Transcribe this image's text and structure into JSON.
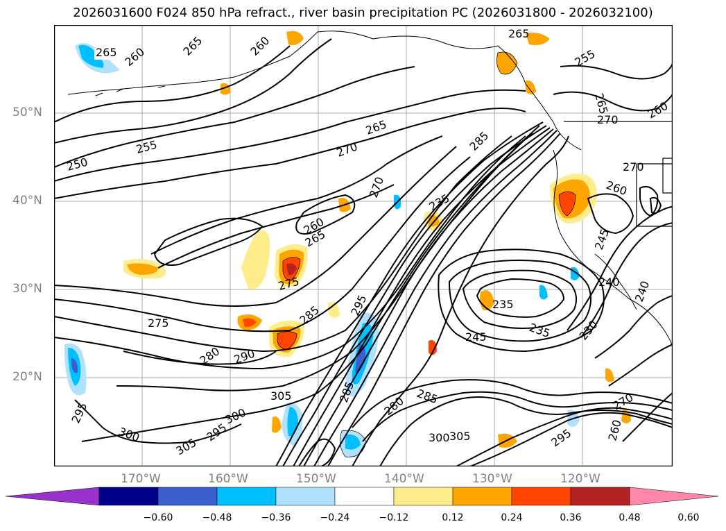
{
  "title": "2026031600 F024 850 hPa refract., river basin precipitation PC (2026031800 - 2026032100)",
  "lat_labels": [
    "50°N",
    "40°N",
    "30°N",
    "20°N"
  ],
  "lon_labels": [
    "170°W",
    "160°W",
    "150°W",
    "140°W",
    "130°W",
    "120°W"
  ],
  "colorbar": {
    "ticks": [
      "−0.60",
      "−0.48",
      "−0.36",
      "−0.24",
      "−0.12",
      "0.12",
      "0.24",
      "0.36",
      "0.48",
      "0.60"
    ],
    "colors": [
      "#9932CC",
      "#00008B",
      "#3A5FCD",
      "#00BFFF",
      "#B0E2FF",
      "#FFFFFF",
      "#FFEC8B",
      "#FFA500",
      "#FF4500",
      "#B22222",
      "#FF88AA"
    ]
  },
  "contour_labels": [
    "265",
    "260",
    "260",
    "265",
    "265",
    "250",
    "255",
    "270",
    "265",
    "270",
    "285",
    "260",
    "265",
    "275",
    "235",
    "275",
    "285",
    "295",
    "280",
    "290",
    "305",
    "300",
    "305",
    "295",
    "295",
    "300",
    "285",
    "280",
    "285",
    "300",
    "305",
    "235",
    "245",
    "235",
    "230",
    "240",
    "245",
    "260",
    "270",
    "260",
    "270",
    "265",
    "270",
    "295",
    "260",
    "255",
    "240"
  ]
}
